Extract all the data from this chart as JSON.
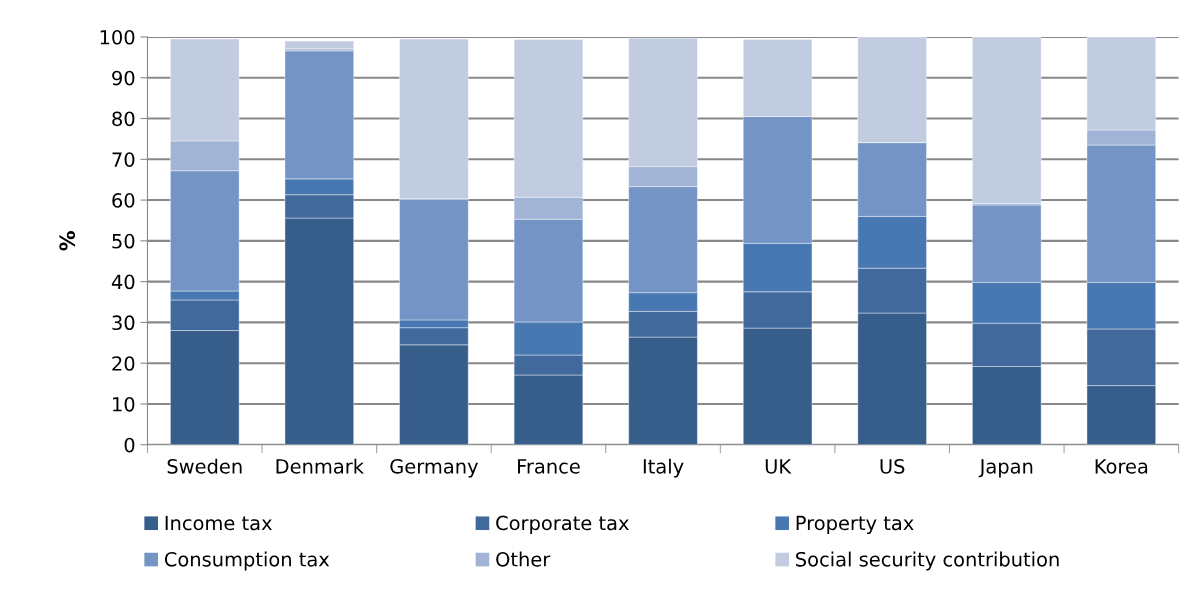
{
  "chart_data": {
    "type": "bar",
    "stacked": true,
    "ylabel": "%",
    "categories": [
      "Sweden",
      "Denmark",
      "Germany",
      "France",
      "Italy",
      "UK",
      "US",
      "Japan",
      "Korea"
    ],
    "series": [
      {
        "name": "Income tax",
        "color": "#375d8a",
        "values": [
          28,
          55.6,
          24.5,
          17.1,
          26.4,
          28.6,
          32.3,
          19.2,
          14.5
        ]
      },
      {
        "name": "Corporate tax",
        "color": "#41699c",
        "values": [
          7.5,
          5.7,
          4.2,
          4.9,
          6.3,
          8.9,
          11,
          10.6,
          13.9
        ]
      },
      {
        "name": "Property tax",
        "color": "#4878b2",
        "values": [
          2.2,
          3.9,
          1.9,
          8.1,
          4.6,
          11.9,
          12.7,
          10,
          11.4
        ]
      },
      {
        "name": "Consumption tax",
        "color": "#7394c5",
        "values": [
          29.5,
          31.4,
          29.7,
          25.2,
          26,
          31.1,
          18.1,
          19,
          33.7
        ]
      },
      {
        "name": "Other",
        "color": "#a1b4d5",
        "values": [
          7.3,
          0.5,
          0,
          5.4,
          4.9,
          0,
          0,
          0.4,
          3.7
        ]
      },
      {
        "name": "Social security contribution",
        "color": "#c1cce1",
        "values": [
          25,
          1.9,
          39.2,
          38.7,
          31.5,
          18.9,
          25.9,
          40.8,
          22.8
        ]
      }
    ],
    "ylim": [
      0,
      100
    ],
    "yticks": [
      0,
      10,
      20,
      30,
      40,
      50,
      60,
      70,
      80,
      90,
      100
    ],
    "grid": "y",
    "legend": "bottom"
  }
}
